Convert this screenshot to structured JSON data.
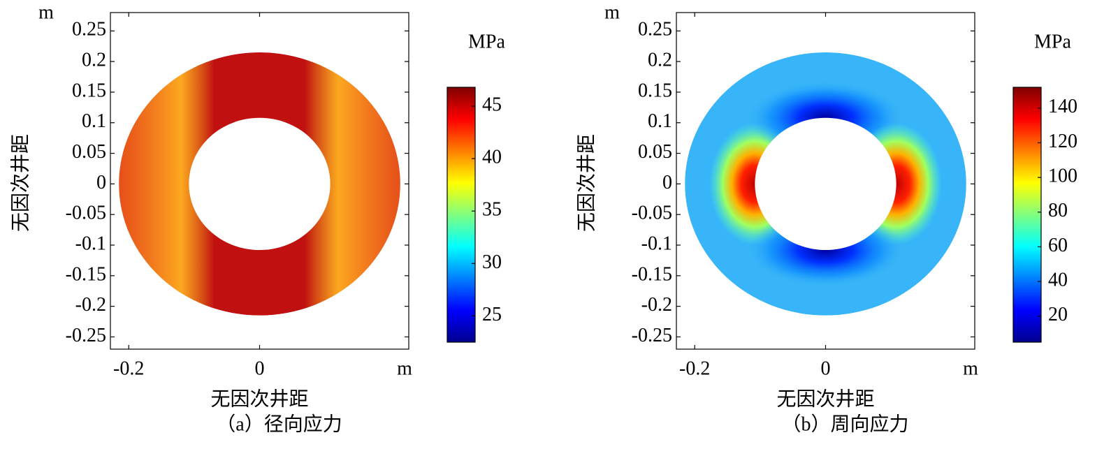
{
  "chart_data": [
    {
      "type": "contour",
      "title": "（a）径向应力",
      "xlabel": "无因次井距",
      "ylabel": "无因次井距",
      "x_unit": "m",
      "y_unit": "m",
      "colorbar_label": "MPa",
      "colormap": "jet",
      "xlim": [
        -0.228,
        0.228
      ],
      "ylim": [
        -0.27,
        0.28
      ],
      "xticks": [
        -0.2,
        0
      ],
      "yticks": [
        0.25,
        0.2,
        0.15,
        0.1,
        0.05,
        0,
        -0.05,
        -0.1,
        -0.15,
        -0.2,
        -0.25
      ],
      "inner_radius": 0.108,
      "outer_radius": 0.215,
      "clim": [
        22.5,
        46.8
      ],
      "cticks": [
        25,
        30,
        35,
        40,
        45
      ]
    },
    {
      "type": "contour",
      "title": "（b）周向应力",
      "xlabel": "无因次井距",
      "ylabel": "无因次井距",
      "x_unit": "m",
      "y_unit": "m",
      "colorbar_label": "MPa",
      "colormap": "jet",
      "xlim": [
        -0.228,
        0.228
      ],
      "ylim": [
        -0.27,
        0.28
      ],
      "xticks": [
        -0.2,
        0
      ],
      "yticks": [
        0.25,
        0.2,
        0.15,
        0.1,
        0.05,
        0,
        -0.05,
        -0.1,
        -0.15,
        -0.2,
        -0.25
      ],
      "inner_radius": 0.108,
      "outer_radius": 0.215,
      "clim": [
        5,
        152
      ],
      "cticks": [
        20,
        40,
        60,
        80,
        100,
        120,
        140
      ]
    }
  ]
}
